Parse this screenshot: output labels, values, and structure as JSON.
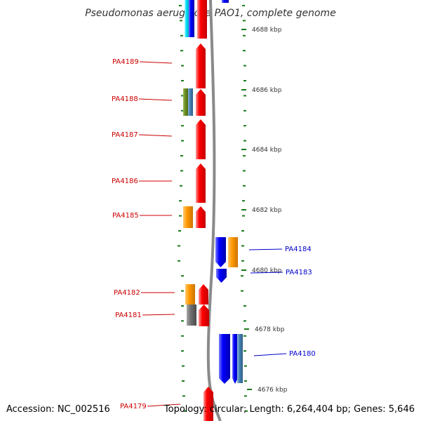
{
  "title": "Pseudomonas aeruginosa PAO1, complete genome",
  "footer": {
    "accession": "Accession: NC_002516",
    "topology": "Topology: circular; Length: 6,264,404 bp; Genes: 5,646"
  },
  "colors": {
    "left_label": "#cc0000",
    "right_label": "#0000cc",
    "backbone": "#808080",
    "tick": "#1a7a1a",
    "red": "#ff0000",
    "blue": "#0000ff",
    "orange": "#ff9900",
    "olive": "#6b8e23",
    "steel": "#4682b4",
    "gray": "#707070",
    "cyan": "#00e5ff"
  },
  "scale_ticks": [
    "4688 kbp",
    "4686 kbp",
    "4684 kbp",
    "4682 kbp",
    "4680 kbp",
    "4678 kbp",
    "4676 kbp"
  ],
  "left_labels": [
    "PA4189",
    "PA4188",
    "PA4187",
    "PA4186",
    "PA4185",
    "PA4182",
    "PA4181",
    "PA4179"
  ],
  "right_labels": [
    "PA4184",
    "PA4183",
    "PA4180"
  ]
}
